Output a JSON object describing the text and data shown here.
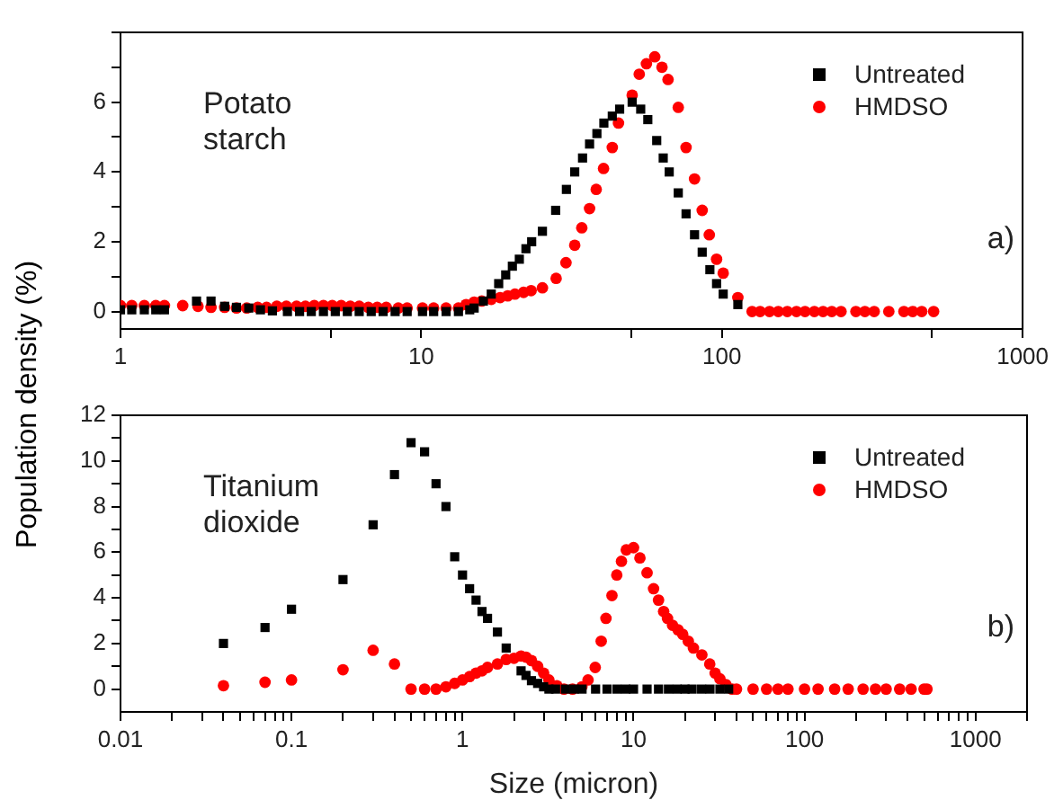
{
  "chart_data": [
    {
      "type": "scatter",
      "ylabel": "Population density (%)",
      "log": "x",
      "xlim": [
        1,
        1000
      ],
      "xticks": [
        1,
        {
          "value": 5,
          "label": null
        },
        10,
        {
          "value": 50,
          "label": null
        },
        100,
        {
          "value": 500,
          "label": null
        },
        1000
      ],
      "ylim": [
        -0.5,
        8
      ],
      "yticks": [
        0,
        {
          "value": 1,
          "label": null
        },
        2,
        {
          "value": 3,
          "label": null
        },
        4,
        {
          "value": 5,
          "label": null
        },
        6,
        {
          "value": 7,
          "label": null
        },
        {
          "value": 8,
          "label": null
        }
      ],
      "grid": false,
      "legend": "top right",
      "annotations": [
        "Potato starch",
        "a)"
      ],
      "series": [
        {
          "name": "Untreated",
          "color": "#000000",
          "marker": "square",
          "x": [
            1.0,
            1.09,
            1.2,
            1.31,
            1.4,
            1.79,
            2.0,
            2.22,
            2.43,
            2.67,
            2.92,
            3.2,
            3.59,
            3.94,
            4.31,
            4.73,
            5.18,
            5.68,
            6.22,
            6.82,
            7.47,
            8.19,
            8.98,
            10.1,
            11.0,
            12.1,
            13.3,
            14.5,
            15.0,
            16.1,
            17.1,
            18.1,
            19.1,
            20.1,
            21.2,
            22.3,
            23.3,
            25.3,
            28.0,
            30.4,
            32.4,
            34.4,
            36.3,
            38.4,
            40.5,
            43.2,
            45.7,
            50.3,
            53.7,
            56.7,
            60.7,
            63.8,
            66.8,
            71.6,
            76.0,
            81.1,
            86.0,
            91.2,
            96.0,
            101,
            113
          ],
          "values": [
            0.05,
            0.05,
            0.05,
            0.05,
            0.05,
            0.3,
            0.3,
            0.15,
            0.12,
            0.1,
            0.05,
            0.02,
            0,
            0,
            0,
            0,
            0,
            0,
            0,
            0,
            0,
            0,
            0,
            0,
            0,
            0,
            0,
            0.05,
            0.1,
            0.3,
            0.5,
            0.8,
            1.05,
            1.3,
            1.5,
            1.8,
            2.0,
            2.3,
            2.9,
            3.5,
            4.0,
            4.4,
            4.8,
            5.1,
            5.4,
            5.6,
            5.8,
            6.0,
            5.8,
            5.5,
            4.9,
            4.4,
            4.0,
            3.4,
            2.8,
            2.2,
            1.7,
            1.2,
            0.8,
            0.5,
            0.2
          ]
        },
        {
          "name": "HMDSO",
          "color": "#ff0000",
          "marker": "circle",
          "x": [
            1.0,
            1.09,
            1.2,
            1.31,
            1.4,
            1.61,
            1.81,
            2.0,
            2.22,
            2.43,
            2.63,
            2.86,
            3.06,
            3.31,
            3.56,
            3.85,
            4.12,
            4.41,
            4.73,
            5.06,
            5.42,
            5.81,
            6.22,
            6.67,
            7.14,
            7.65,
            8.39,
            8.98,
            10.1,
            11.0,
            12.1,
            13.3,
            14.1,
            15.0,
            15.9,
            17.1,
            18.3,
            19.4,
            20.5,
            21.9,
            23.2,
            25.3,
            28.1,
            30.3,
            32.4,
            34.2,
            36.3,
            38.2,
            40.4,
            43.2,
            45.3,
            50.3,
            53.1,
            56.1,
            59.8,
            63.2,
            66.2,
            71.6,
            76.0,
            81.1,
            86.0,
            90.8,
            96.0,
            101,
            113,
            126,
            134,
            144,
            154,
            165,
            177,
            189,
            203,
            217,
            232,
            249,
            279,
            299,
            321,
            359,
            403,
            431,
            462,
            506
          ],
          "values": [
            0.17,
            0.17,
            0.17,
            0.17,
            0.17,
            0.17,
            0.15,
            0.12,
            0.12,
            0.1,
            0.1,
            0.12,
            0.12,
            0.15,
            0.15,
            0.15,
            0.15,
            0.17,
            0.17,
            0.17,
            0.17,
            0.15,
            0.15,
            0.12,
            0.12,
            0.12,
            0.1,
            0.1,
            0.1,
            0.1,
            0.1,
            0.1,
            0.2,
            0.27,
            0.3,
            0.35,
            0.4,
            0.45,
            0.5,
            0.55,
            0.6,
            0.68,
            0.95,
            1.4,
            1.9,
            2.4,
            2.95,
            3.5,
            4.1,
            4.7,
            5.4,
            6.2,
            6.8,
            7.1,
            7.3,
            7.0,
            6.65,
            5.85,
            4.7,
            3.8,
            2.9,
            2.2,
            1.5,
            1.1,
            0.4,
            0,
            0,
            0,
            0,
            0,
            0,
            0,
            0,
            0,
            0,
            0,
            0,
            0,
            0,
            0,
            0,
            0,
            0,
            0
          ]
        }
      ]
    },
    {
      "type": "scatter",
      "xlabel": "Size (micron)",
      "log": "x",
      "xlim": [
        0.01,
        2000
      ],
      "xticks": [
        0.01,
        {
          "value": 0.02,
          "label": null
        },
        {
          "value": 0.03,
          "label": null
        },
        {
          "value": 0.04,
          "label": null
        },
        {
          "value": 0.05,
          "label": null
        },
        {
          "value": 0.06,
          "label": null
        },
        {
          "value": 0.07,
          "label": null
        },
        {
          "value": 0.08,
          "label": null
        },
        {
          "value": 0.09,
          "label": null
        },
        0.1,
        {
          "value": 0.2,
          "label": null
        },
        {
          "value": 0.3,
          "label": null
        },
        {
          "value": 0.4,
          "label": null
        },
        {
          "value": 0.5,
          "label": null
        },
        {
          "value": 0.6,
          "label": null
        },
        {
          "value": 0.7,
          "label": null
        },
        {
          "value": 0.8,
          "label": null
        },
        {
          "value": 0.9,
          "label": null
        },
        1,
        {
          "value": 2,
          "label": null
        },
        {
          "value": 3,
          "label": null
        },
        {
          "value": 4,
          "label": null
        },
        {
          "value": 5,
          "label": null
        },
        {
          "value": 6,
          "label": null
        },
        {
          "value": 7,
          "label": null
        },
        {
          "value": 8,
          "label": null
        },
        {
          "value": 9,
          "label": null
        },
        10,
        {
          "value": 20,
          "label": null
        },
        {
          "value": 30,
          "label": null
        },
        {
          "value": 40,
          "label": null
        },
        {
          "value": 50,
          "label": null
        },
        {
          "value": 60,
          "label": null
        },
        {
          "value": 70,
          "label": null
        },
        {
          "value": 80,
          "label": null
        },
        {
          "value": 90,
          "label": null
        },
        100,
        {
          "value": 200,
          "label": null
        },
        {
          "value": 300,
          "label": null
        },
        {
          "value": 400,
          "label": null
        },
        {
          "value": 500,
          "label": null
        },
        {
          "value": 600,
          "label": null
        },
        {
          "value": 700,
          "label": null
        },
        {
          "value": 800,
          "label": null
        },
        {
          "value": 900,
          "label": null
        },
        1000,
        {
          "value": 2000,
          "label": null
        }
      ],
      "ylim": [
        -1,
        12
      ],
      "yticks": [
        0,
        {
          "value": 1,
          "label": null
        },
        2,
        {
          "value": 3,
          "label": null
        },
        4,
        {
          "value": 5,
          "label": null
        },
        6,
        {
          "value": 7,
          "label": null
        },
        8,
        {
          "value": 9,
          "label": null
        },
        10,
        {
          "value": 11,
          "label": null
        },
        12
      ],
      "grid": false,
      "legend": "top right",
      "annotations": [
        "Titanium dioxide",
        "b)"
      ],
      "series": [
        {
          "name": "Untreated",
          "color": "#000000",
          "marker": "square",
          "x": [
            0.04,
            0.07,
            0.1,
            0.2,
            0.3,
            0.4,
            0.5,
            0.6,
            0.7,
            0.8,
            0.9,
            1.0,
            1.1,
            1.2,
            1.3,
            1.4,
            1.6,
            1.8,
            2.2,
            2.35,
            2.53,
            2.75,
            2.98,
            3.2,
            3.5,
            4,
            4.5,
            5,
            6,
            7,
            8,
            9,
            10,
            12,
            14,
            16,
            18,
            20,
            22,
            25,
            28,
            32,
            36
          ],
          "values": [
            2.0,
            2.7,
            3.5,
            4.8,
            7.2,
            9.4,
            10.8,
            10.4,
            9.0,
            8.0,
            5.8,
            5.0,
            4.4,
            3.9,
            3.4,
            3.1,
            2.5,
            1.8,
            0.8,
            0.6,
            0.37,
            0.25,
            0.1,
            0,
            0,
            0,
            0,
            0,
            0,
            0,
            0,
            0,
            0,
            0,
            0,
            0,
            0,
            0,
            0,
            0,
            0,
            0,
            0
          ]
        },
        {
          "name": "HMDSO",
          "color": "#ff0000",
          "marker": "circle",
          "x": [
            0.04,
            0.07,
            0.1,
            0.2,
            0.3,
            0.4,
            0.5,
            0.6,
            0.7,
            0.8,
            0.9,
            1.0,
            1.1,
            1.2,
            1.3,
            1.4,
            1.6,
            1.8,
            2.0,
            2.2,
            2.35,
            2.53,
            2.75,
            2.98,
            3.2,
            3.56,
            3.92,
            4.4,
            4.99,
            5.42,
            5.97,
            6.47,
            6.9,
            7.48,
            7.98,
            8.5,
            9.07,
            10.0,
            10.9,
            12.0,
            13.1,
            14.0,
            15.0,
            15.8,
            16.9,
            18.2,
            19.4,
            20.9,
            22.4,
            25.1,
            27.9,
            30.0,
            32.0,
            34.7,
            37.7,
            40,
            50,
            60,
            70,
            80,
            100,
            120,
            150,
            180,
            220,
            260,
            300,
            360,
            420,
            500,
            520
          ],
          "values": [
            0.15,
            0.3,
            0.4,
            0.85,
            1.7,
            1.1,
            0,
            0,
            0,
            0.1,
            0.25,
            0.4,
            0.55,
            0.7,
            0.8,
            0.95,
            1.1,
            1.3,
            1.35,
            1.45,
            1.4,
            1.25,
            1.0,
            0.7,
            0.4,
            0.15,
            0,
            0,
            0.1,
            0.4,
            0.95,
            2.1,
            3.1,
            4.1,
            5.0,
            5.6,
            6.1,
            6.2,
            5.75,
            5.1,
            4.4,
            3.9,
            3.4,
            3.1,
            2.8,
            2.6,
            2.4,
            2.1,
            1.8,
            1.5,
            1.1,
            0.7,
            0.45,
            0.2,
            0,
            0,
            0,
            0,
            0,
            0,
            0,
            0,
            0,
            0,
            0,
            0,
            0,
            0,
            0,
            0,
            0
          ]
        }
      ]
    }
  ]
}
